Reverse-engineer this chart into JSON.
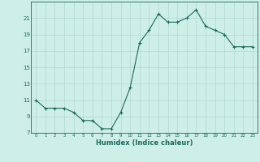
{
  "x": [
    0,
    1,
    2,
    3,
    4,
    5,
    6,
    7,
    8,
    9,
    10,
    11,
    12,
    13,
    14,
    15,
    16,
    17,
    18,
    19,
    20,
    21,
    22,
    23
  ],
  "y": [
    11,
    10,
    10,
    10,
    9.5,
    8.5,
    8.5,
    7.5,
    7.5,
    9.5,
    12.5,
    18,
    19.5,
    21.5,
    20.5,
    20.5,
    21,
    22,
    20,
    19.5,
    19,
    17.5,
    17.5,
    17.5
  ],
  "xlabel": "Humidex (Indice chaleur)",
  "ylim": [
    7,
    23
  ],
  "xlim": [
    -0.5,
    23.5
  ],
  "yticks": [
    7,
    9,
    11,
    13,
    15,
    17,
    19,
    21
  ],
  "xticks": [
    0,
    1,
    2,
    3,
    4,
    5,
    6,
    7,
    8,
    9,
    10,
    11,
    12,
    13,
    14,
    15,
    16,
    17,
    18,
    19,
    20,
    21,
    22,
    23
  ],
  "line_color": "#1a6b5a",
  "marker": "+",
  "bg_color": "#ceeee8",
  "grid_color": "#b0d8d2",
  "label_color": "#1a6b5a",
  "tick_color": "#1a6b5a"
}
